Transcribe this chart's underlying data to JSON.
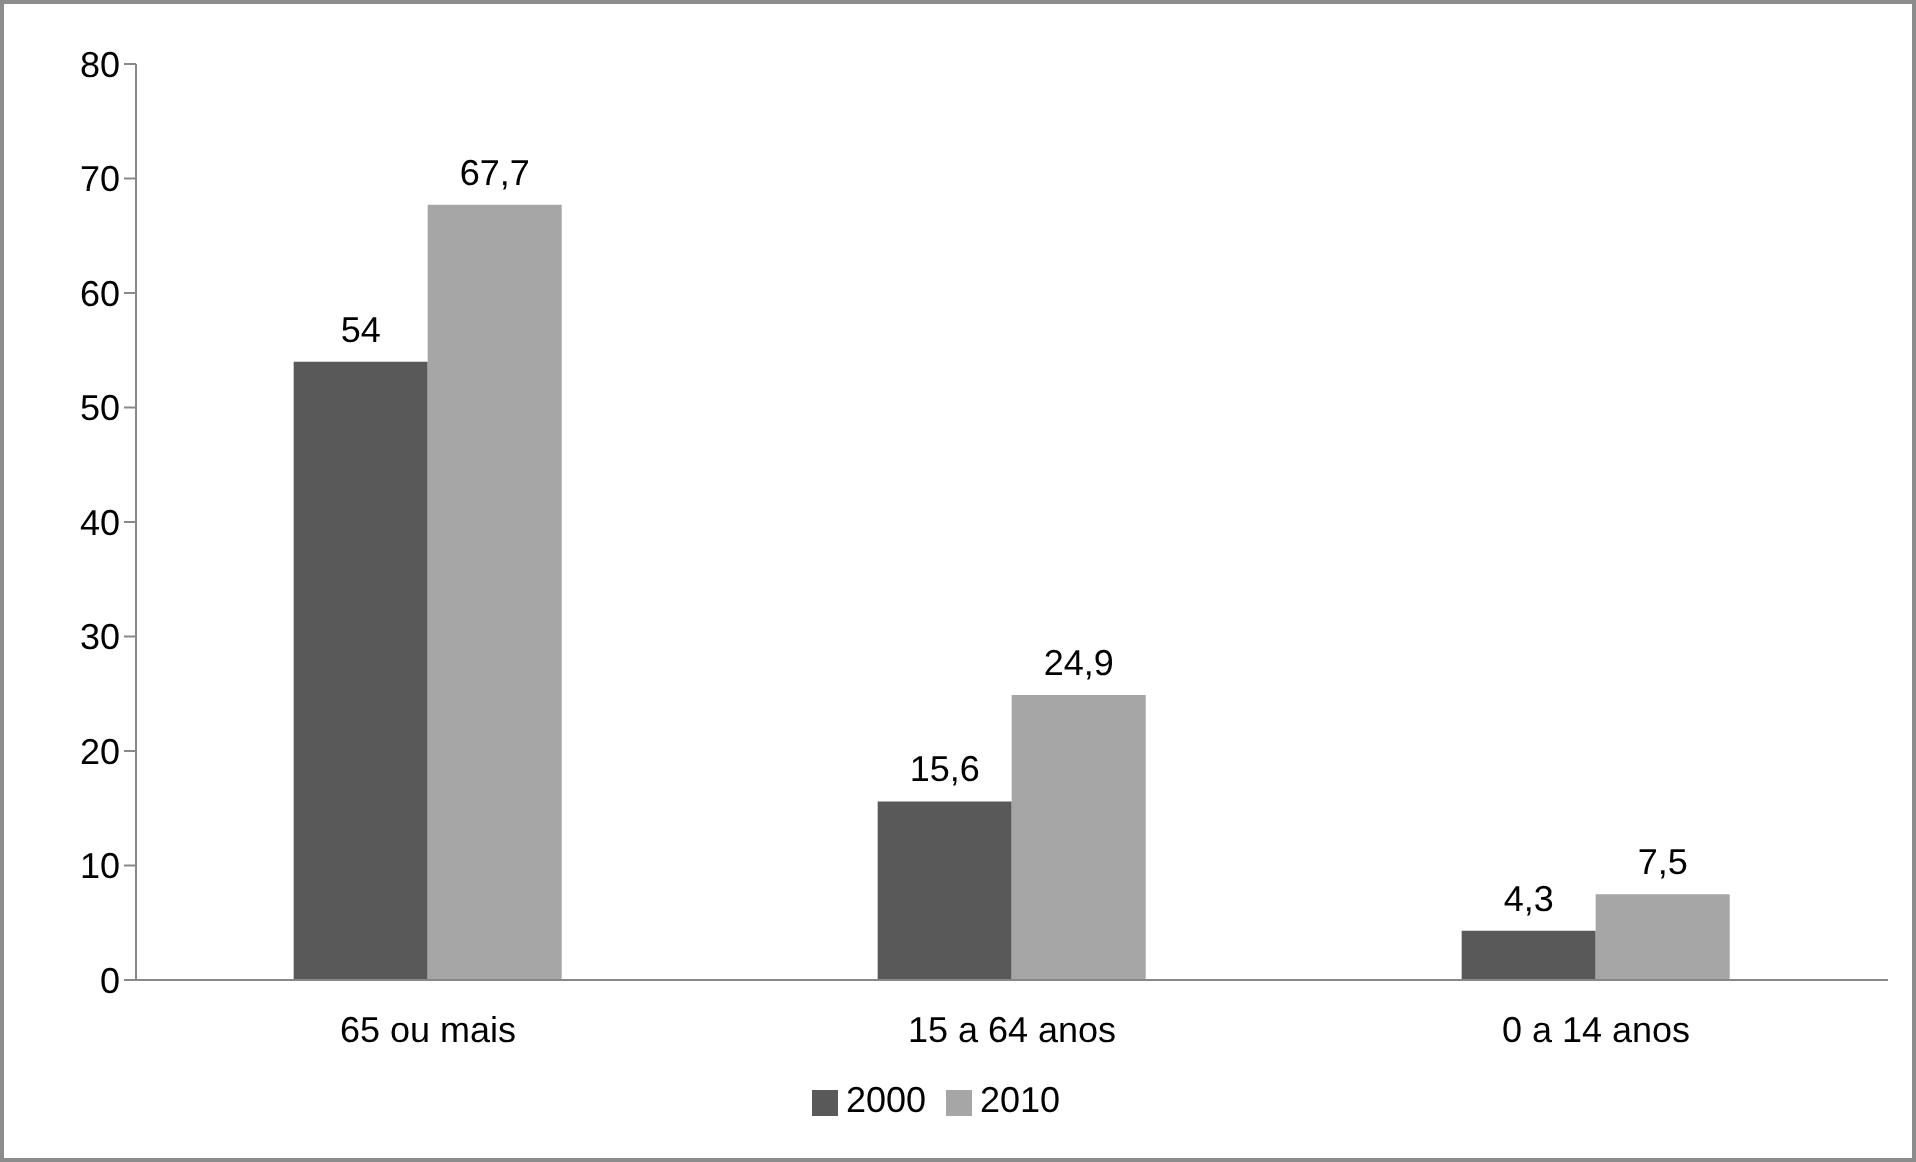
{
  "chart_data": {
    "type": "bar",
    "categories": [
      "65 ou mais",
      "15 a 64 anos",
      "0 a 14 anos"
    ],
    "series": [
      {
        "name": "2000",
        "color": "#595959",
        "values": [
          54,
          15.6,
          4.3
        ],
        "value_labels": [
          "54",
          "15,6",
          "4,3"
        ]
      },
      {
        "name": "2010",
        "color": "#a6a6a6",
        "values": [
          67.7,
          24.9,
          7.5
        ],
        "value_labels": [
          "67,7",
          "24,9",
          "7,5"
        ]
      }
    ],
    "ylim": [
      0,
      80
    ],
    "yticks": [
      0,
      10,
      20,
      30,
      40,
      50,
      60,
      70,
      80
    ],
    "grid": false,
    "legend": "bottom"
  }
}
